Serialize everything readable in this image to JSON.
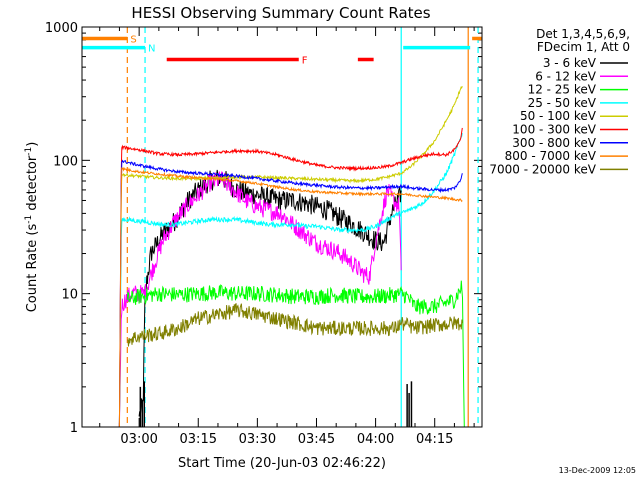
{
  "chart_data": {
    "type": "line",
    "title": "HESSI Observing Summary Count Rates",
    "xlabel": "Start Time (20-Jun-03 02:46:22)",
    "ylabel_parts": [
      "Count Rate (s",
      "-1",
      " detector",
      "-1",
      ")"
    ],
    "footer": "13-Dec-2009 12:05",
    "y_scale": "log",
    "ylim": [
      1,
      1000
    ],
    "xlim_minutes": [
      -14.5,
      87
    ],
    "y_tick_labels": [
      "1",
      "10",
      "100",
      "1000"
    ],
    "x_tick_labels": [
      "03:00",
      "03:15",
      "03:30",
      "03:45",
      "04:00",
      "04:15"
    ],
    "legend": {
      "placement": "right",
      "header": [
        "Det 1,3,4,5,6,9,",
        "FDecim 1, Att 0"
      ],
      "entries": [
        {
          "label": "3 - 6 keV",
          "color": "#000000"
        },
        {
          "label": "6 - 12 keV",
          "color": "#ff00ff"
        },
        {
          "label": "12 - 25 keV",
          "color": "#00ff00"
        },
        {
          "label": "25 - 50 keV",
          "color": "#00ffff"
        },
        {
          "label": "50 - 100 keV",
          "color": "#cccc00"
        },
        {
          "label": "100 - 300 keV",
          "color": "#ff0000"
        },
        {
          "label": "300 - 800 keV",
          "color": "#0000ff"
        },
        {
          "label": "800 - 7000 keV",
          "color": "#ff8000"
        },
        {
          "label": "7000 - 20000 keV",
          "color": "#808000"
        }
      ]
    },
    "flags": [
      {
        "label": "S",
        "color": "#ff8000",
        "level": 820,
        "segments": [
          [
            -14.5,
            -3
          ],
          [
            84.5,
            87
          ]
        ]
      },
      {
        "label": "N",
        "color": "#00ffff",
        "level": 700,
        "segments": [
          [
            -14.5,
            1.5
          ],
          [
            67,
            84
          ]
        ]
      },
      {
        "label": "F",
        "color": "#ff0000",
        "level": 570,
        "segments": [
          [
            7,
            40.5
          ],
          [
            55.5,
            59.5
          ]
        ]
      }
    ],
    "vertical_markers": [
      {
        "x": -3,
        "color": "#ff8000",
        "style": "dashed"
      },
      {
        "x": 1.5,
        "color": "#00ffff",
        "style": "dashed"
      },
      {
        "x": 66.5,
        "color": "#00ffff",
        "style": "solid"
      },
      {
        "x": 83.5,
        "color": "#ff8000",
        "style": "solid"
      },
      {
        "x": 86,
        "color": "#00ffff",
        "style": "dashed"
      }
    ],
    "series": [
      {
        "name": "3 - 6 keV",
        "color": "#000000",
        "noise": 0.18,
        "x": [
          0,
          1,
          1.5,
          3,
          6,
          9,
          12,
          15,
          18,
          21,
          24,
          27,
          30,
          33,
          36,
          39,
          42,
          45,
          48,
          51,
          54,
          57,
          60,
          62,
          63,
          64,
          66,
          66.5
        ],
        "y": [
          1.2,
          1.5,
          10,
          20,
          28,
          35,
          48,
          60,
          70,
          75,
          62,
          57,
          55,
          52,
          50,
          50,
          48,
          45,
          42,
          37,
          33,
          29,
          25,
          24,
          30,
          40,
          52,
          58
        ]
      },
      {
        "name": "6 - 12 keV",
        "color": "#ff00ff",
        "noise": 0.16,
        "x": [
          -5,
          -4.5,
          -3.5,
          -2,
          0,
          1.5,
          3,
          6,
          9,
          12,
          15,
          18,
          21,
          24,
          27,
          30,
          33,
          36,
          39,
          42,
          45,
          48,
          51,
          54,
          57,
          58.5,
          60,
          62,
          63,
          64,
          66,
          66.5
        ],
        "y": [
          1,
          8,
          9,
          10,
          10,
          10,
          14,
          25,
          35,
          45,
          55,
          68,
          72,
          60,
          50,
          45,
          42,
          40,
          33,
          28,
          24,
          22,
          20,
          17,
          14,
          13.5,
          25,
          45,
          60,
          52,
          45,
          15
        ]
      },
      {
        "name": "12 - 25 keV",
        "color": "#00ff00",
        "noise": 0.14,
        "x": [
          -3,
          0,
          5,
          10,
          15,
          20,
          25,
          30,
          35,
          40,
          45,
          50,
          55,
          60,
          65,
          66.5,
          68,
          70,
          75,
          80,
          82,
          82.5
        ],
        "y": [
          9,
          9.5,
          10,
          9.8,
          10,
          10.2,
          10,
          10,
          9.8,
          9.5,
          9.5,
          9.8,
          9.5,
          9.5,
          9.8,
          10,
          9.5,
          8,
          8,
          9,
          11.5,
          1
        ]
      },
      {
        "name": "25 - 50 keV",
        "color": "#00ffff",
        "noise": 0.04,
        "x": [
          -5,
          -4.5,
          -4,
          0,
          3,
          6,
          9,
          12,
          15,
          18,
          21,
          24,
          27,
          30,
          33,
          36,
          39,
          42,
          45,
          48,
          51,
          54,
          57,
          60,
          63,
          65,
          66.5,
          69,
          72,
          75,
          78,
          80,
          82
        ],
        "y": [
          1,
          36,
          36,
          35,
          34,
          33,
          33,
          34,
          35,
          36,
          36,
          36,
          35,
          34,
          33,
          33,
          33,
          32,
          32,
          31,
          30,
          30,
          30,
          32,
          36,
          39,
          40,
          43,
          48,
          60,
          80,
          110,
          160
        ]
      },
      {
        "name": "50 - 100 keV",
        "color": "#cccc00",
        "noise": 0.025,
        "x": [
          -5,
          -4.5,
          -4,
          0,
          5,
          10,
          15,
          20,
          25,
          30,
          35,
          40,
          45,
          50,
          55,
          60,
          63,
          66.5,
          69,
          72,
          75,
          78,
          80,
          81.5,
          82
        ],
        "y": [
          1,
          80,
          78,
          76,
          74,
          73,
          73,
          74,
          75,
          75,
          74,
          73,
          72,
          71,
          70,
          72,
          75,
          80,
          90,
          110,
          140,
          200,
          260,
          340,
          360
        ]
      },
      {
        "name": "100 - 300 keV",
        "color": "#ff0000",
        "noise": 0.025,
        "x": [
          -5,
          -4.5,
          -4,
          0,
          5,
          10,
          15,
          20,
          25,
          30,
          35,
          40,
          45,
          50,
          55,
          60,
          63,
          66.5,
          69,
          72,
          75,
          78,
          80,
          81.5,
          82
        ],
        "y": [
          1,
          125,
          125,
          120,
          112,
          110,
          112,
          115,
          118,
          117,
          110,
          100,
          92,
          88,
          87,
          88,
          90,
          96,
          102,
          108,
          112,
          110,
          120,
          140,
          175
        ]
      },
      {
        "name": "300 - 800 keV",
        "color": "#0000ff",
        "noise": 0.025,
        "x": [
          -5,
          -4.5,
          -4,
          0,
          5,
          10,
          15,
          20,
          25,
          30,
          35,
          40,
          45,
          50,
          55,
          60,
          63,
          66.5,
          69,
          72,
          75,
          78,
          80,
          81.5,
          82
        ],
        "y": [
          1,
          100,
          98,
          92,
          86,
          82,
          80,
          78,
          76,
          73,
          70,
          67,
          65,
          63,
          62,
          62,
          63,
          64,
          62,
          61,
          60,
          60,
          62,
          70,
          80
        ]
      },
      {
        "name": "800 - 7000 keV",
        "color": "#ff8000",
        "noise": 0.02,
        "x": [
          -5,
          -4.5,
          -4,
          0,
          5,
          10,
          15,
          20,
          25,
          30,
          35,
          40,
          45,
          50,
          55,
          60,
          63,
          66.5,
          69,
          72,
          75,
          78,
          80,
          82
        ],
        "y": [
          1,
          88,
          86,
          82,
          79,
          76,
          74,
          72,
          70,
          67,
          63,
          60,
          58,
          57,
          56,
          56,
          56,
          56,
          55,
          54,
          53,
          52,
          51,
          50
        ]
      },
      {
        "name": "7000 - 20000 keV",
        "color": "#808000",
        "noise": 0.13,
        "x": [
          -3,
          0,
          5,
          10,
          15,
          20,
          25,
          30,
          35,
          40,
          45,
          50,
          55,
          60,
          65,
          66.5,
          68,
          70,
          75,
          80,
          82
        ],
        "y": [
          4.5,
          4.8,
          5,
          5.5,
          6.5,
          7,
          7.5,
          7,
          6.5,
          6,
          5.5,
          5.5,
          5.5,
          5.5,
          5.5,
          6,
          5.8,
          5.5,
          5.8,
          6,
          6
        ]
      }
    ],
    "spikes": [
      {
        "color": "#000000",
        "x": [
          0.3,
          0.8,
          1.3
        ],
        "y": [
          2,
          1.6,
          2.2
        ]
      },
      {
        "color": "#000000",
        "x": [
          68,
          68.5,
          69.1
        ],
        "y": [
          2.1,
          1.8,
          2.2
        ]
      }
    ],
    "ticks": {
      "x_minutes": [
        0,
        15,
        30,
        45,
        60,
        75
      ],
      "x_minor_minutes": [
        -10,
        -5,
        5,
        10,
        20,
        25,
        35,
        40,
        50,
        55,
        65,
        70,
        80,
        85
      ]
    }
  }
}
